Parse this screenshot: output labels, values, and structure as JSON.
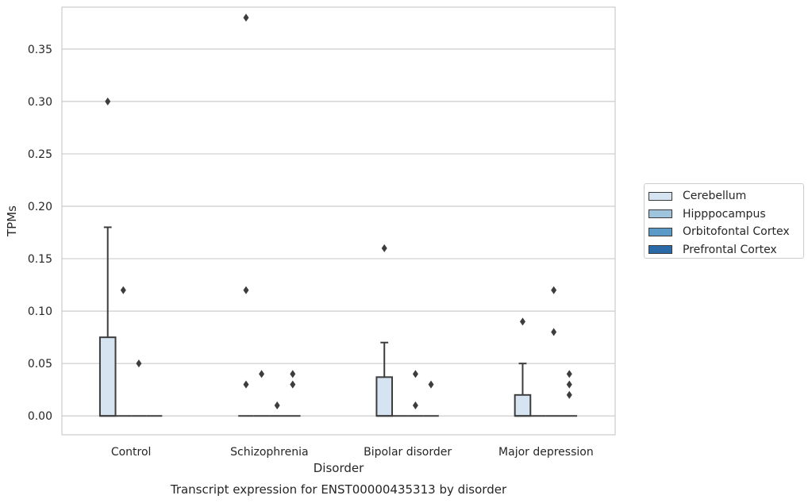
{
  "chart_data": {
    "type": "box",
    "title": "Transcript expression for ENST00000435313 by disorder",
    "xlabel": "Disorder",
    "ylabel": "TPMs",
    "ylim": [
      -0.018,
      0.39
    ],
    "yticks": [
      0.0,
      0.05,
      0.1,
      0.15,
      0.2,
      0.25,
      0.3,
      0.35
    ],
    "ytick_labels": [
      "0.00",
      "0.05",
      "0.10",
      "0.15",
      "0.20",
      "0.25",
      "0.30",
      "0.35"
    ],
    "categories": [
      "Control",
      "Schizophrenia",
      "Bipolar disorder",
      "Major depression"
    ],
    "grid": "horizontal",
    "legend_position": "right",
    "series": [
      {
        "name": "Cerebellum",
        "color": "#d6e4f2",
        "boxes": [
          {
            "q1": 0.0,
            "median": 0.0,
            "q3": 0.075,
            "whisker_low": 0.0,
            "whisker_high": 0.18,
            "outliers": [
              0.3
            ]
          },
          {
            "q1": 0.0,
            "median": 0.0,
            "q3": 0.0,
            "whisker_low": 0.0,
            "whisker_high": 0.0,
            "outliers": [
              0.38,
              0.12,
              0.03
            ]
          },
          {
            "q1": 0.0,
            "median": 0.0,
            "q3": 0.037,
            "whisker_low": 0.0,
            "whisker_high": 0.07,
            "outliers": [
              0.16
            ]
          },
          {
            "q1": 0.0,
            "median": 0.0,
            "q3": 0.02,
            "whisker_low": 0.0,
            "whisker_high": 0.05,
            "outliers": [
              0.09
            ]
          }
        ]
      },
      {
        "name": "Hipppocampus",
        "color": "#9fc4de",
        "boxes": [
          {
            "q1": 0.0,
            "median": 0.0,
            "q3": 0.0,
            "whisker_low": 0.0,
            "whisker_high": 0.0,
            "outliers": [
              0.12
            ]
          },
          {
            "q1": 0.0,
            "median": 0.0,
            "q3": 0.0,
            "whisker_low": 0.0,
            "whisker_high": 0.0,
            "outliers": [
              0.04
            ]
          },
          {
            "q1": 0.0,
            "median": 0.0,
            "q3": 0.0,
            "whisker_low": 0.0,
            "whisker_high": 0.0,
            "outliers": []
          },
          {
            "q1": 0.0,
            "median": 0.0,
            "q3": 0.0,
            "whisker_low": 0.0,
            "whisker_high": 0.0,
            "outliers": []
          }
        ]
      },
      {
        "name": "Orbitofontal Cortex",
        "color": "#5b9ac7",
        "boxes": [
          {
            "q1": 0.0,
            "median": 0.0,
            "q3": 0.0,
            "whisker_low": 0.0,
            "whisker_high": 0.0,
            "outliers": [
              0.05
            ]
          },
          {
            "q1": 0.0,
            "median": 0.0,
            "q3": 0.0,
            "whisker_low": 0.0,
            "whisker_high": 0.0,
            "outliers": [
              0.01
            ]
          },
          {
            "q1": 0.0,
            "median": 0.0,
            "q3": 0.0,
            "whisker_low": 0.0,
            "whisker_high": 0.0,
            "outliers": [
              0.04,
              0.01
            ]
          },
          {
            "q1": 0.0,
            "median": 0.0,
            "q3": 0.0,
            "whisker_low": 0.0,
            "whisker_high": 0.0,
            "outliers": [
              0.12,
              0.08
            ]
          }
        ]
      },
      {
        "name": "Prefrontal Cortex",
        "color": "#2b6aa8",
        "boxes": [
          {
            "q1": 0.0,
            "median": 0.0,
            "q3": 0.0,
            "whisker_low": 0.0,
            "whisker_high": 0.0,
            "outliers": []
          },
          {
            "q1": 0.0,
            "median": 0.0,
            "q3": 0.0,
            "whisker_low": 0.0,
            "whisker_high": 0.0,
            "outliers": [
              0.04,
              0.03
            ]
          },
          {
            "q1": 0.0,
            "median": 0.0,
            "q3": 0.0,
            "whisker_low": 0.0,
            "whisker_high": 0.0,
            "outliers": [
              0.03
            ]
          },
          {
            "q1": 0.0,
            "median": 0.0,
            "q3": 0.0,
            "whisker_low": 0.0,
            "whisker_high": 0.0,
            "outliers": [
              0.04,
              0.03,
              0.02
            ]
          }
        ]
      }
    ]
  }
}
